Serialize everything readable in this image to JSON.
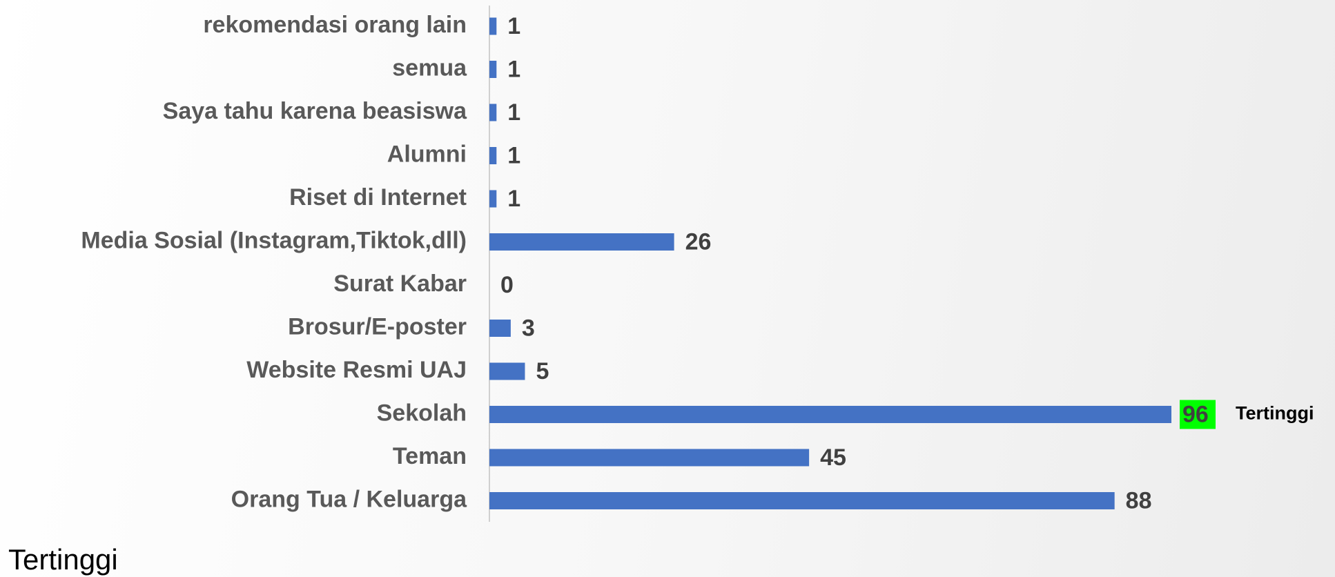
{
  "chart_data": {
    "type": "bar",
    "orientation": "horizontal",
    "categories": [
      "rekomendasi orang lain",
      "semua",
      "Saya tahu karena beasiswa",
      "Alumni",
      "Riset di Internet",
      "Media Sosial (Instagram,Tiktok,dll)",
      "Surat Kabar",
      "Brosur/E-poster",
      "Website Resmi UAJ",
      "Sekolah",
      "Teman",
      "Orang Tua / Keluarga"
    ],
    "values": [
      1,
      1,
      1,
      1,
      1,
      26,
      0,
      3,
      5,
      96,
      45,
      88
    ],
    "color": "#4472c4",
    "highlight_color": "#00ff00",
    "annotation": "Tertinggi",
    "footer": "Tertinggi"
  }
}
